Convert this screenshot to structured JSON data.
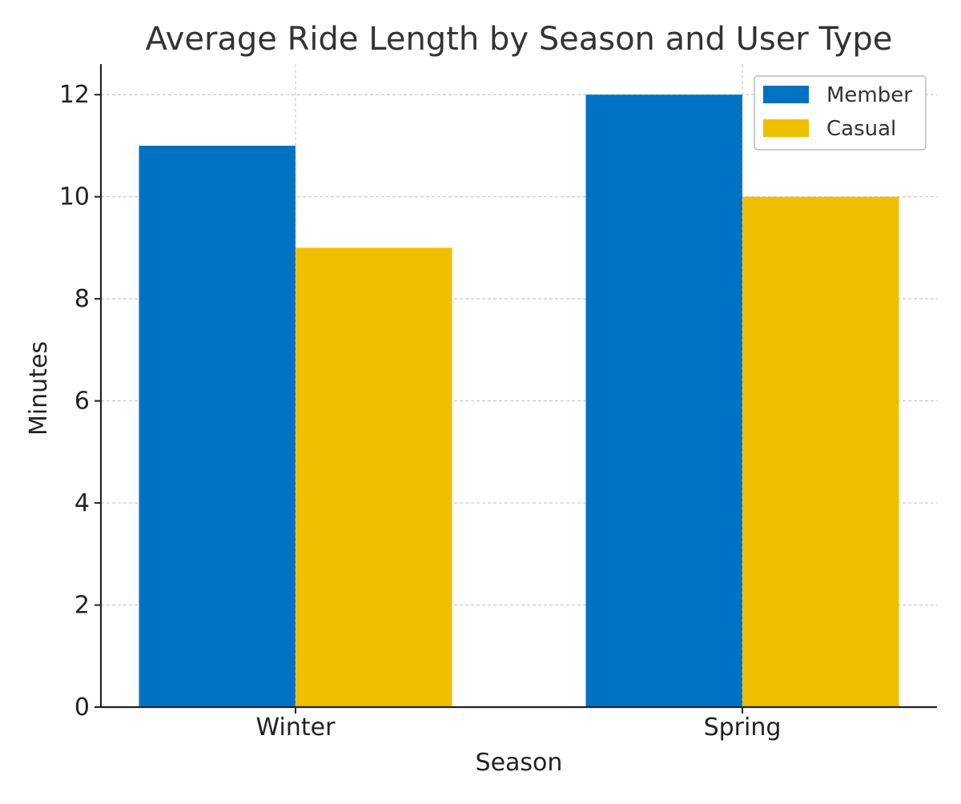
{
  "chart_data": {
    "type": "bar",
    "title": "Average Ride Length by Season and User Type",
    "xlabel": "Season",
    "ylabel": "Minutes",
    "categories": [
      "Winter",
      "Spring"
    ],
    "series": [
      {
        "name": "Member",
        "values": [
          11,
          12
        ],
        "color": "#0072C2"
      },
      {
        "name": "Casual",
        "values": [
          9,
          10
        ],
        "color": "#EFBF00"
      }
    ],
    "ylim": [
      0,
      12.6
    ],
    "yticks": [
      0,
      2,
      4,
      6,
      8,
      10,
      12
    ],
    "grid": true,
    "legend_position": "top-right"
  }
}
